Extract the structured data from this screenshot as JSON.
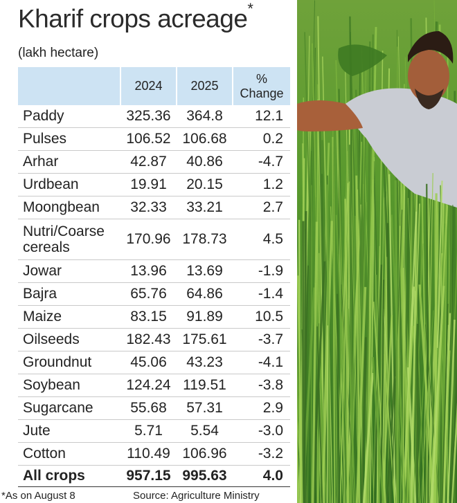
{
  "title": "Kharif crops acreage",
  "title_marker": "*",
  "unit": "(lakh hectare)",
  "headers": {
    "crop": "",
    "y2024": "2024",
    "y2025": "2025",
    "change_line1": "%",
    "change_line2": "Change"
  },
  "rows": [
    {
      "crop": "Paddy",
      "y2024": "325.36",
      "y2025": "364.8",
      "change": "12.1"
    },
    {
      "crop": "Pulses",
      "y2024": "106.52",
      "y2025": "106.68",
      "change": "0.2"
    },
    {
      "crop": "Arhar",
      "y2024": "42.87",
      "y2025": "40.86",
      "change": "-4.7"
    },
    {
      "crop": "Urdbean",
      "y2024": "19.91",
      "y2025": "20.15",
      "change": "1.2"
    },
    {
      "crop": "Moongbean",
      "y2024": "32.33",
      "y2025": "33.21",
      "change": "2.7"
    },
    {
      "crop": "Nutri/Coarse cereals",
      "y2024": "170.96",
      "y2025": "178.73",
      "change": "4.5"
    },
    {
      "crop": "Jowar",
      "y2024": "13.96",
      "y2025": "13.69",
      "change": "-1.9"
    },
    {
      "crop": "Bajra",
      "y2024": "65.76",
      "y2025": "64.86",
      "change": "-1.4"
    },
    {
      "crop": "Maize",
      "y2024": "83.15",
      "y2025": "91.89",
      "change": "10.5"
    },
    {
      "crop": "Oilseeds",
      "y2024": "182.43",
      "y2025": "175.61",
      "change": "-3.7"
    },
    {
      "crop": "Groundnut",
      "y2024": "45.06",
      "y2025": "43.23",
      "change": "-4.1"
    },
    {
      "crop": "Soybean",
      "y2024": "124.24",
      "y2025": "119.51",
      "change": "-3.8"
    },
    {
      "crop": "Sugarcane",
      "y2024": "55.68",
      "y2025": "57.31",
      "change": "2.9"
    },
    {
      "crop": "Jute",
      "y2024": "5.71",
      "y2025": "5.54",
      "change": "-3.0"
    },
    {
      "crop": "Cotton",
      "y2024": "110.49",
      "y2025": "106.96",
      "change": "-3.2"
    }
  ],
  "total": {
    "crop": "All crops",
    "y2024": "957.15",
    "y2025": "995.63",
    "change": "4.0"
  },
  "footnote": "*As on August 8",
  "source": "Source: Agriculture Ministry",
  "colors": {
    "header_bg": "#cde3f3",
    "text": "#222222",
    "row_rule": "#c9c9c9"
  },
  "photo": {
    "subject": "farmer in paddy field"
  },
  "chart_data": {
    "type": "table",
    "title": "Kharif crops acreage*",
    "unit": "lakh hectare",
    "columns": [
      "",
      "2024",
      "2025",
      "% Change"
    ],
    "rows": [
      [
        "Paddy",
        325.36,
        364.8,
        12.1
      ],
      [
        "Pulses",
        106.52,
        106.68,
        0.2
      ],
      [
        "Arhar",
        42.87,
        40.86,
        -4.7
      ],
      [
        "Urdbean",
        19.91,
        20.15,
        1.2
      ],
      [
        "Moongbean",
        32.33,
        33.21,
        2.7
      ],
      [
        "Nutri/Coarse cereals",
        170.96,
        178.73,
        4.5
      ],
      [
        "Jowar",
        13.96,
        13.69,
        -1.9
      ],
      [
        "Bajra",
        65.76,
        64.86,
        -1.4
      ],
      [
        "Maize",
        83.15,
        91.89,
        10.5
      ],
      [
        "Oilseeds",
        182.43,
        175.61,
        -3.7
      ],
      [
        "Groundnut",
        45.06,
        43.23,
        -4.1
      ],
      [
        "Soybean",
        124.24,
        119.51,
        -3.8
      ],
      [
        "Sugarcane",
        55.68,
        57.31,
        2.9
      ],
      [
        "Jute",
        5.71,
        5.54,
        -3.0
      ],
      [
        "Cotton",
        110.49,
        106.96,
        -3.2
      ],
      [
        "All crops",
        957.15,
        995.63,
        4.0
      ]
    ]
  }
}
